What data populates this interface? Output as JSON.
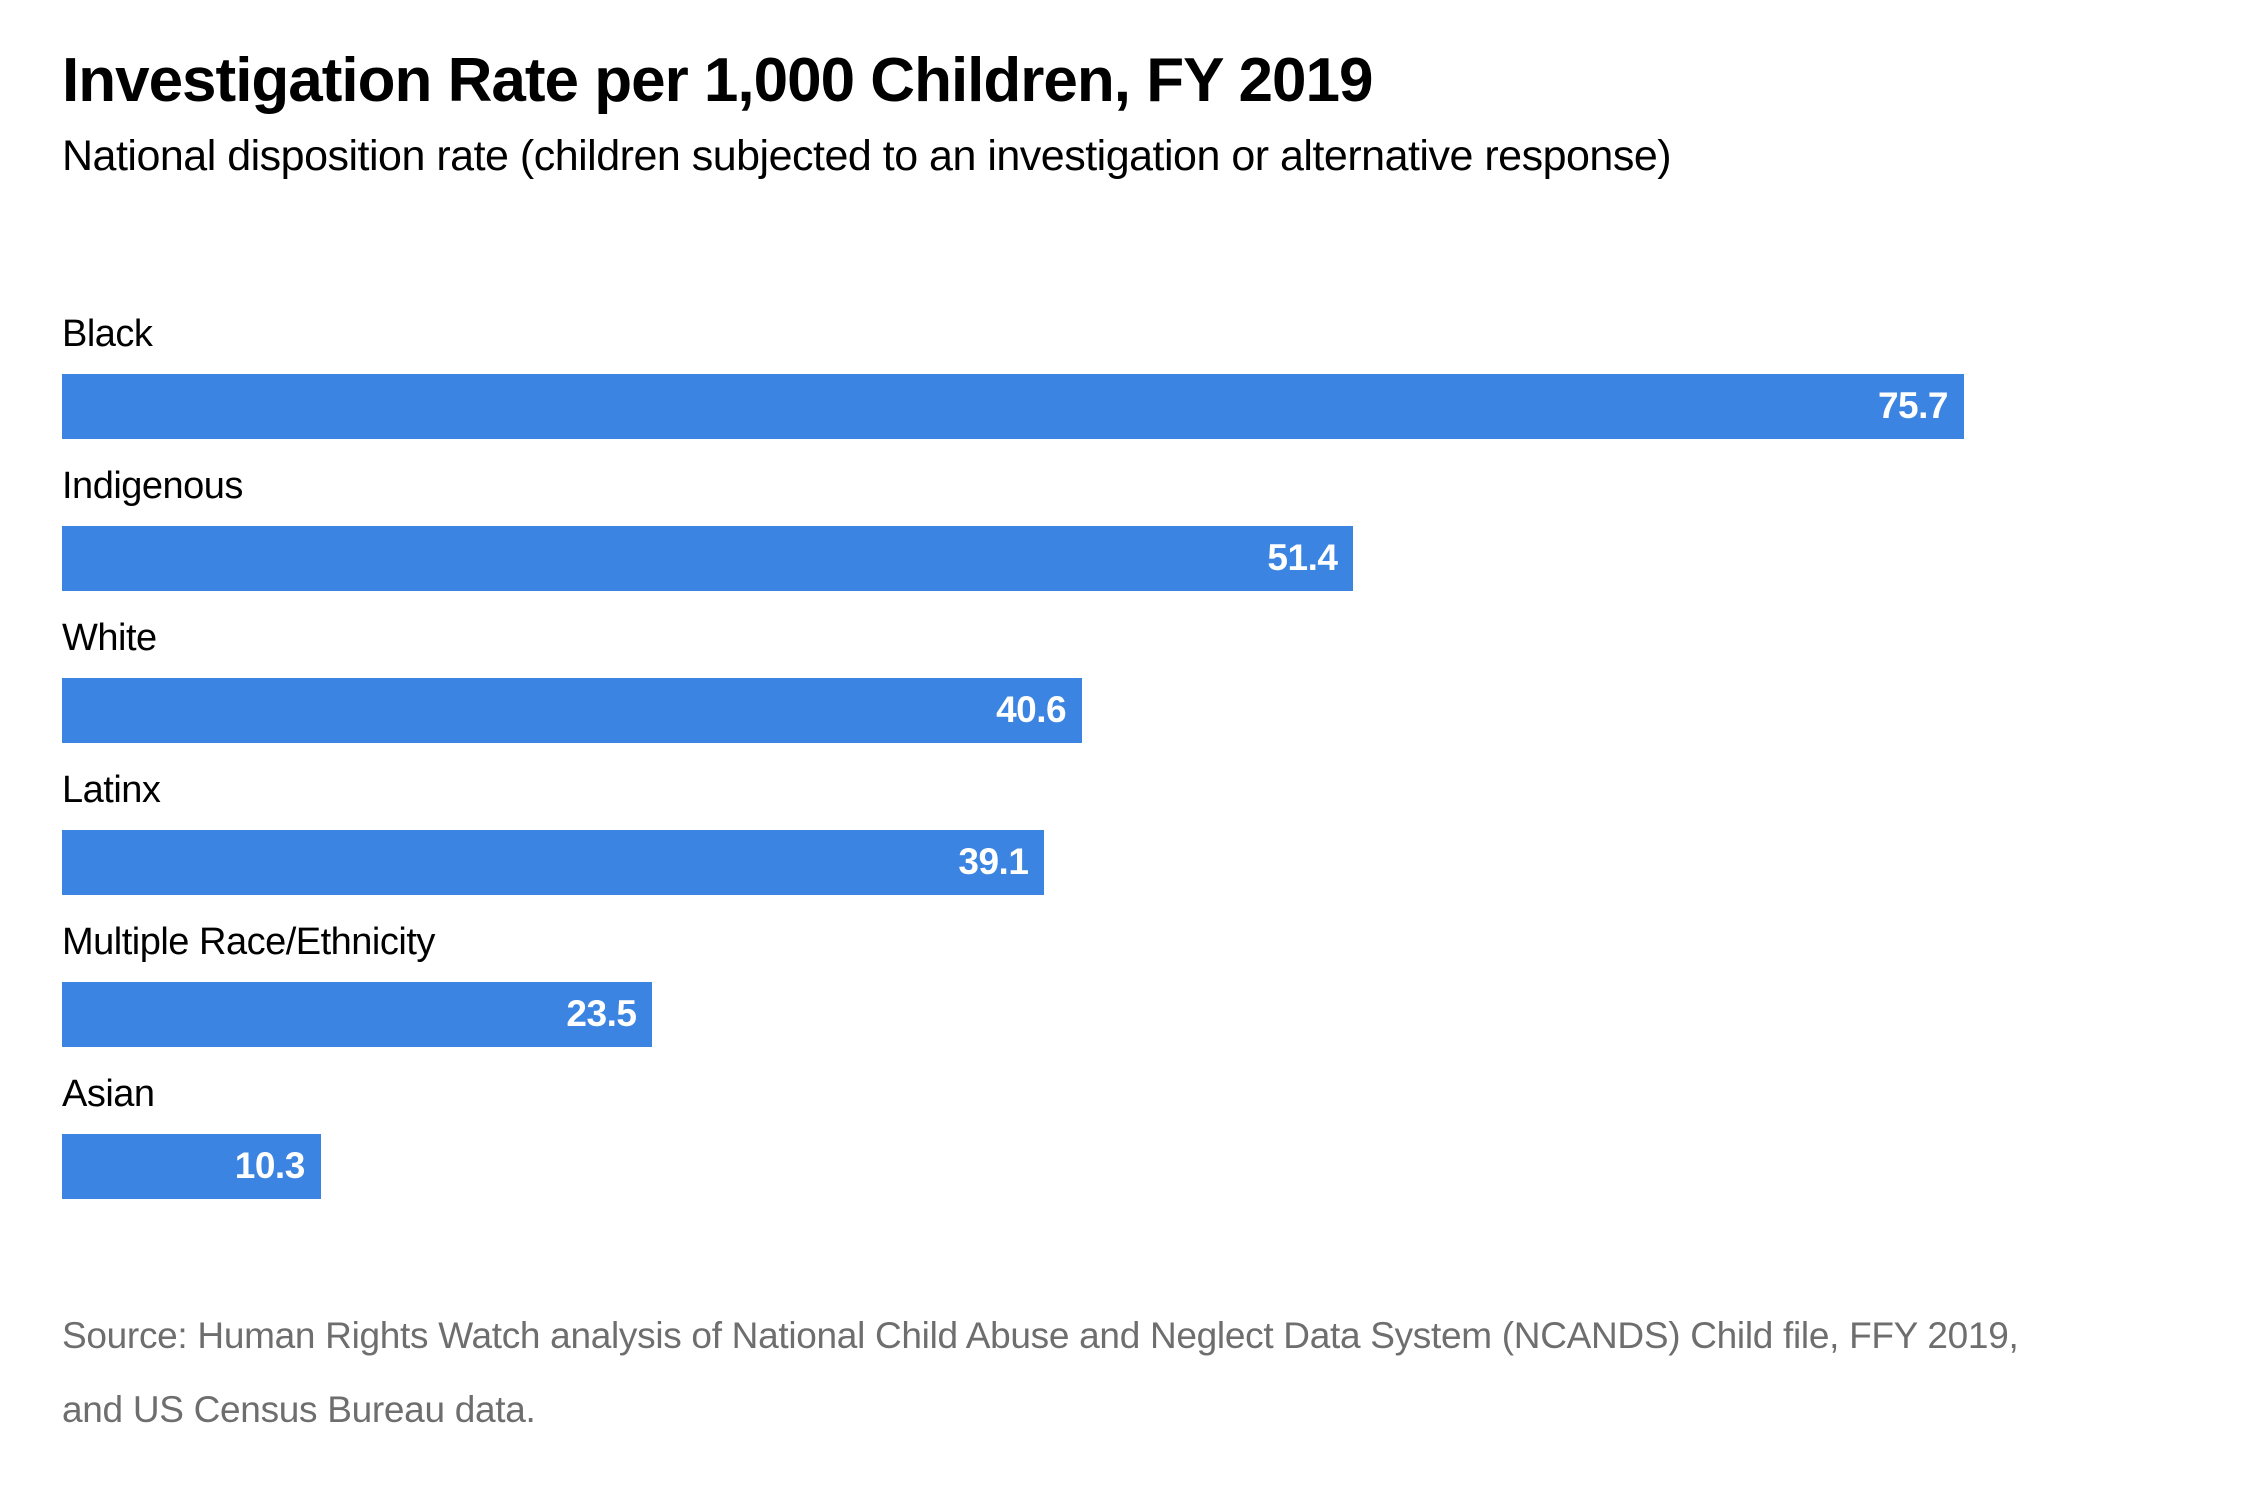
{
  "page": {
    "title": "Investigation Rate per 1,000 Children, FY 2019",
    "subtitle": "National disposition rate (children subjected to an investigation or alternative response)",
    "source_line1": "Source: Human Rights Watch analysis of National Child Abuse and Neglect Data System (NCANDS) Child file, FFY 2019,",
    "source_line2": "and US Census Bureau data."
  },
  "colors": {
    "bar": "#3b84e2",
    "title_text": "#000000",
    "value_label_text": "#ffffff",
    "source_text": "#6e6e6e",
    "background": "#ffffff"
  },
  "chart_data": {
    "type": "bar",
    "orientation": "horizontal",
    "title": "Investigation Rate per 1,000 Children, FY 2019",
    "subtitle": "National disposition rate (children subjected to an investigation or alternative response)",
    "categories": [
      "Black",
      "Indigenous",
      "White",
      "Latinx",
      "Multiple Race/Ethnicity",
      "Asian"
    ],
    "values": [
      75.7,
      51.4,
      40.6,
      39.1,
      23.5,
      10.3
    ],
    "value_labels": [
      "75.7",
      "51.4",
      "40.6",
      "39.1",
      "23.5",
      "10.3"
    ],
    "xlabel": "",
    "ylabel": "",
    "xlim": [
      0,
      75.7
    ],
    "grid": false,
    "legend": false,
    "value_label_position": "inside-end",
    "source": "Source: Human Rights Watch analysis of National Child Abuse and Neglect Data System (NCANDS) Child file, FFY 2019, and US Census Bureau data."
  }
}
